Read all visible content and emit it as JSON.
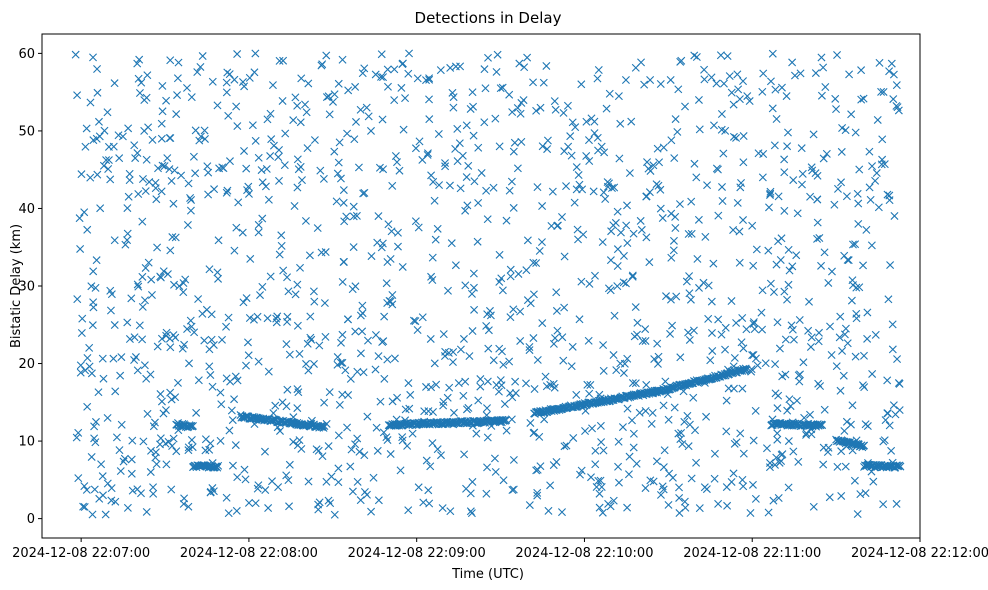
{
  "chart_data": {
    "type": "scatter",
    "title": "Detections in Delay",
    "xlabel": "Time (UTC)",
    "ylabel": "Bistatic Delay (km)",
    "marker": "x",
    "color": "#1f77b4",
    "grid": false,
    "x_ticks": [
      "2024-12-08 22:07:00",
      "2024-12-08 22:08:00",
      "2024-12-08 22:09:00",
      "2024-12-08 22:10:00",
      "2024-12-08 22:11:00",
      "2024-12-08 22:12:00"
    ],
    "y_ticks": [
      0,
      10,
      20,
      30,
      40,
      50,
      60
    ],
    "xlim": [
      "2024-12-08 22:06:46",
      "2024-12-08 22:12:00"
    ],
    "ylim": [
      -2.5,
      62.5
    ],
    "data_range_x": [
      "2024-12-08 22:06:58",
      "2024-12-08 22:11:53"
    ],
    "data_range_y": [
      0.5,
      60
    ],
    "noise_detection_count": 1500,
    "tracks": [
      {
        "t_start": "2024-12-08 22:07:34",
        "t_end": "2024-12-08 22:07:40",
        "delay_start": 12.2,
        "delay_end": 11.8
      },
      {
        "t_start": "2024-12-08 22:07:40",
        "t_end": "2024-12-08 22:07:49",
        "delay_start": 6.8,
        "delay_end": 6.7
      },
      {
        "t_start": "2024-12-08 22:07:57",
        "t_end": "2024-12-08 22:08:27",
        "delay_start": 13.2,
        "delay_end": 11.8
      },
      {
        "t_start": "2024-12-08 22:08:50",
        "t_end": "2024-12-08 22:09:32",
        "delay_start": 12.1,
        "delay_end": 12.6
      },
      {
        "t_start": "2024-12-08 22:09:42",
        "t_end": "2024-12-08 22:10:26",
        "delay_start": 13.6,
        "delay_end": 16.4
      },
      {
        "t_start": "2024-12-08 22:10:26",
        "t_end": "2024-12-08 22:10:58",
        "delay_start": 16.4,
        "delay_end": 19.3
      },
      {
        "t_start": "2024-12-08 22:11:07",
        "t_end": "2024-12-08 22:11:25",
        "delay_start": 12.2,
        "delay_end": 12.0
      },
      {
        "t_start": "2024-12-08 22:11:30",
        "t_end": "2024-12-08 22:11:40",
        "delay_start": 10.1,
        "delay_end": 9.3
      },
      {
        "t_start": "2024-12-08 22:11:40",
        "t_end": "2024-12-08 22:11:53",
        "delay_start": 6.8,
        "delay_end": 6.7
      }
    ]
  }
}
